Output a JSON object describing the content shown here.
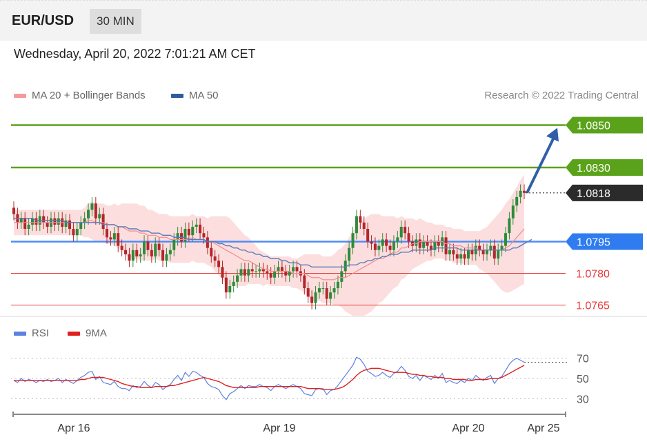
{
  "header": {
    "pair": "EUR/USD",
    "timeframe": "30 MIN"
  },
  "datetime": "Wednesday, April 20, 2022 7:01:21 AM CET",
  "legend": {
    "ma20": "MA 20 + Bollinger Bands",
    "ma50": "MA 50"
  },
  "credit": "Research © 2022 Trading Central",
  "rsi_legend": {
    "rsi": "RSI",
    "ma": "9MA"
  },
  "colors": {
    "resistance": "#5aa21a",
    "support": "#4d8cf5",
    "target_red": "#e53935",
    "last_price": "#2b2b2b",
    "bollinger": "#fbd0d0",
    "ma20": "#f08c8c",
    "ma50": "#5a7ab8",
    "up": "#2e8b3a",
    "down": "#b3262a",
    "arrow": "#2f5fa8",
    "rsi": "#5b82e0",
    "rsi_ma": "#e02020"
  },
  "chart_data": [
    {
      "type": "candlestick",
      "title": "",
      "x_labels": [
        "Apr 16",
        "Apr 19",
        "Apr 20",
        "Apr 25"
      ],
      "ylim": [
        1.076,
        1.0857
      ],
      "levels": [
        {
          "value": "1.0850",
          "kind": "resistance"
        },
        {
          "value": "1.0830",
          "kind": "resistance"
        },
        {
          "value": "1.0818",
          "kind": "last"
        },
        {
          "value": "1.0795",
          "kind": "pivot"
        },
        {
          "value": "1.0780",
          "kind": "support"
        },
        {
          "value": "1.0765",
          "kind": "support"
        }
      ],
      "close_series": [
        1.0808,
        1.0804,
        1.0806,
        1.0801,
        1.0803,
        1.0806,
        1.0803,
        1.0807,
        1.0804,
        1.0802,
        1.0806,
        1.0803,
        1.0806,
        1.0802,
        1.0805,
        1.0801,
        1.0798,
        1.0801,
        1.0804,
        1.0806,
        1.081,
        1.0813,
        1.0806,
        1.0808,
        1.0801,
        1.0797,
        1.0796,
        1.0799,
        1.0793,
        1.0791,
        1.0789,
        1.0786,
        1.0791,
        1.0788,
        1.0789,
        1.0795,
        1.0791,
        1.0788,
        1.0794,
        1.0791,
        1.0786,
        1.0789,
        1.0791,
        1.0796,
        1.0799,
        1.0795,
        1.0801,
        1.0798,
        1.0802,
        1.0803,
        1.0799,
        1.0797,
        1.0792,
        1.0788,
        1.0786,
        1.0783,
        1.0778,
        1.0771,
        1.0774,
        1.0776,
        1.0779,
        1.0782,
        1.0779,
        1.0782,
        1.0781,
        1.0781,
        1.0782,
        1.0781,
        1.078,
        1.0778,
        1.0781,
        1.0783,
        1.0781,
        1.0779,
        1.0781,
        1.0783,
        1.0781,
        1.0779,
        1.0773,
        1.0769,
        1.0766,
        1.0771,
        1.0773,
        1.0773,
        1.0768,
        1.0771,
        1.0773,
        1.0776,
        1.0781,
        1.0786,
        1.0792,
        1.0799,
        1.0807,
        1.0804,
        1.0801,
        1.0795,
        1.0794,
        1.0791,
        1.0793,
        1.0796,
        1.0793,
        1.0791,
        1.0795,
        1.0797,
        1.0802,
        1.0799,
        1.0795,
        1.0793,
        1.0796,
        1.0792,
        1.0795,
        1.0793,
        1.0791,
        1.0795,
        1.0793,
        1.0797,
        1.0789,
        1.0791,
        1.0789,
        1.0787,
        1.0789,
        1.0787,
        1.0791,
        1.0789,
        1.0793,
        1.0791,
        1.0789,
        1.0791,
        1.0793,
        1.0787,
        1.0791,
        1.0793,
        1.0799,
        1.0806,
        1.0812,
        1.0816,
        1.0819,
        1.0818
      ],
      "ma20": [
        1.0804,
        1.0804,
        1.0804,
        1.0804,
        1.0804,
        1.0804,
        1.0804,
        1.0804,
        1.0804,
        1.0804,
        1.0804,
        1.0804,
        1.0804,
        1.0804,
        1.0804,
        1.0804,
        1.0804,
        1.0804,
        1.0804,
        1.0804,
        1.0805,
        1.0805,
        1.0804,
        1.0804,
        1.0804,
        1.0803,
        1.0803,
        1.0803,
        1.0802,
        1.0802,
        1.0801,
        1.08,
        1.08,
        1.08,
        1.0799,
        1.0799,
        1.0798,
        1.0798,
        1.0798,
        1.0797,
        1.0797,
        1.0797,
        1.0796,
        1.0796,
        1.0796,
        1.0796,
        1.0796,
        1.0796,
        1.0797,
        1.0796,
        1.0796,
        1.0796,
        1.0795,
        1.0795,
        1.0794,
        1.0793,
        1.0792,
        1.0791,
        1.079,
        1.0789,
        1.0788,
        1.0787,
        1.0786,
        1.0786,
        1.0785,
        1.0784,
        1.0783,
        1.0782,
        1.0782,
        1.0781,
        1.0781,
        1.0781,
        1.0781,
        1.0781,
        1.0781,
        1.078,
        1.078,
        1.078,
        1.078,
        1.0779,
        1.0778,
        1.0778,
        1.0778,
        1.0777,
        1.0777,
        1.0777,
        1.0777,
        1.0778,
        1.0778,
        1.0778,
        1.0779,
        1.078,
        1.0781,
        1.0782,
        1.0783,
        1.0784,
        1.0785,
        1.0786,
        1.0787,
        1.0787,
        1.0788,
        1.0789,
        1.079,
        1.079,
        1.0792,
        1.0792,
        1.0793,
        1.0794,
        1.0794,
        1.0795,
        1.0795,
        1.0795,
        1.0795,
        1.0795,
        1.0795,
        1.0795,
        1.0794,
        1.0794,
        1.0793,
        1.0793,
        1.0793,
        1.0792,
        1.0792,
        1.0792,
        1.0792,
        1.0791,
        1.0791,
        1.0791,
        1.0791,
        1.0791,
        1.0791,
        1.0791,
        1.0792,
        1.0793,
        1.0795,
        1.0797,
        1.0799,
        1.0801
      ],
      "ma50": [
        1.0806,
        1.0806,
        1.0806,
        1.0806,
        1.0806,
        1.0806,
        1.0805,
        1.0805,
        1.0805,
        1.0805,
        1.0805,
        1.0805,
        1.0805,
        1.0805,
        1.0804,
        1.0804,
        1.0804,
        1.0804,
        1.0804,
        1.0804,
        1.0804,
        1.0804,
        1.0804,
        1.0804,
        1.0803,
        1.0803,
        1.0803,
        1.0803,
        1.0802,
        1.0802,
        1.0802,
        1.0801,
        1.0801,
        1.0801,
        1.08,
        1.08,
        1.08,
        1.0799,
        1.0799,
        1.0799,
        1.0798,
        1.0798,
        1.0798,
        1.0797,
        1.0797,
        1.0797,
        1.0797,
        1.0796,
        1.0796,
        1.0796,
        1.0796,
        1.0796,
        1.0795,
        1.0795,
        1.0795,
        1.0794,
        1.0794,
        1.0793,
        1.0793,
        1.0792,
        1.0792,
        1.0791,
        1.0791,
        1.079,
        1.079,
        1.0789,
        1.0789,
        1.0788,
        1.0788,
        1.0787,
        1.0787,
        1.0787,
        1.0786,
        1.0786,
        1.0785,
        1.0785,
        1.0785,
        1.0784,
        1.0784,
        1.0784,
        1.0783,
        1.0783,
        1.0783,
        1.0783,
        1.0783,
        1.0783,
        1.0783,
        1.0783,
        1.0783,
        1.0783,
        1.0784,
        1.0784,
        1.0784,
        1.0785,
        1.0785,
        1.0786,
        1.0786,
        1.0787,
        1.0787,
        1.0788,
        1.0788,
        1.0789,
        1.0789,
        1.0789,
        1.079,
        1.079,
        1.079,
        1.0791,
        1.0791,
        1.0791,
        1.0791,
        1.0791,
        1.0791,
        1.0792,
        1.0792,
        1.0792,
        1.0792,
        1.0792,
        1.0792,
        1.0792,
        1.0791,
        1.0791,
        1.0791,
        1.0791,
        1.0791,
        1.0791,
        1.0791,
        1.0791,
        1.0791,
        1.0791,
        1.0791,
        1.0791,
        1.0791,
        1.0791,
        1.0792,
        1.0792,
        1.0793,
        1.0794,
        1.0795,
        1.0796
      ],
      "bb_width": [
        0.0006,
        0.0006,
        0.0006,
        0.0006,
        0.0006,
        0.0006,
        0.0006,
        0.0006,
        0.0006,
        0.0006,
        0.0006,
        0.0006,
        0.0006,
        0.0006,
        0.0006,
        0.0006,
        0.0006,
        0.0006,
        0.0006,
        0.0007,
        0.0008,
        0.0009,
        0.0009,
        0.0009,
        0.0009,
        0.0009,
        0.0009,
        0.001,
        0.001,
        0.0011,
        0.0012,
        0.0013,
        0.0013,
        0.0013,
        0.0013,
        0.0013,
        0.0012,
        0.0012,
        0.0011,
        0.0011,
        0.0011,
        0.0011,
        0.0011,
        0.0011,
        0.0011,
        0.0011,
        0.0011,
        0.0011,
        0.0011,
        0.0011,
        0.0011,
        0.0011,
        0.0011,
        0.0012,
        0.0013,
        0.0014,
        0.0015,
        0.0016,
        0.0016,
        0.0015,
        0.0014,
        0.0013,
        0.0012,
        0.0011,
        0.001,
        0.0009,
        0.0008,
        0.0008,
        0.0007,
        0.0007,
        0.0007,
        0.0007,
        0.0007,
        0.0007,
        0.0007,
        0.0007,
        0.0007,
        0.0008,
        0.0009,
        0.001,
        0.0011,
        0.0011,
        0.0011,
        0.0011,
        0.0011,
        0.0011,
        0.0012,
        0.0013,
        0.0014,
        0.0016,
        0.0018,
        0.002,
        0.0021,
        0.0022,
        0.0023,
        0.0023,
        0.0023,
        0.0022,
        0.0021,
        0.002,
        0.0019,
        0.0018,
        0.0017,
        0.0016,
        0.0015,
        0.0014,
        0.0013,
        0.0012,
        0.0011,
        0.0011,
        0.001,
        0.0009,
        0.0009,
        0.0008,
        0.0008,
        0.0008,
        0.0008,
        0.0008,
        0.0008,
        0.0008,
        0.0008,
        0.0008,
        0.0008,
        0.0008,
        0.0008,
        0.0009,
        0.001,
        0.0011,
        0.0013,
        0.0015,
        0.0017,
        0.0019,
        0.0021,
        0.0022,
        0.0023,
        0.0024,
        0.0025,
        0.0026
      ]
    },
    {
      "type": "line",
      "title": "",
      "yticks": [
        "70",
        "50",
        "30"
      ],
      "ylim": [
        20,
        80
      ],
      "series": [
        {
          "name": "RSI",
          "values": [
            48,
            46,
            50,
            47,
            49,
            48,
            46,
            48,
            47,
            49,
            47,
            48,
            50,
            46,
            49,
            47,
            45,
            48,
            51,
            53,
            56,
            57,
            49,
            52,
            46,
            45,
            44,
            47,
            42,
            40,
            40,
            38,
            43,
            41,
            42,
            47,
            43,
            41,
            46,
            44,
            39,
            42,
            44,
            49,
            53,
            48,
            56,
            52,
            57,
            56,
            53,
            51,
            45,
            42,
            41,
            39,
            33,
            29,
            35,
            37,
            40,
            43,
            40,
            43,
            42,
            42,
            44,
            42,
            41,
            38,
            42,
            44,
            42,
            40,
            42,
            44,
            42,
            40,
            35,
            34,
            33,
            39,
            40,
            40,
            34,
            38,
            39,
            43,
            48,
            53,
            58,
            63,
            71,
            69,
            64,
            57,
            55,
            52,
            53,
            56,
            53,
            51,
            55,
            57,
            62,
            58,
            52,
            50,
            53,
            48,
            53,
            51,
            49,
            53,
            50,
            55,
            46,
            48,
            46,
            45,
            48,
            46,
            50,
            48,
            53,
            50,
            48,
            51,
            53,
            45,
            50,
            52,
            58,
            64,
            68,
            70,
            68,
            66
          ]
        },
        {
          "name": "9MA",
          "values": [
            48,
            48,
            48,
            48,
            48,
            48,
            48,
            48,
            48,
            48,
            48,
            48,
            48,
            48,
            48,
            48,
            48,
            48,
            49,
            49,
            50,
            51,
            51,
            51,
            51,
            50,
            49,
            48,
            47,
            45,
            44,
            43,
            42,
            42,
            41,
            41,
            41,
            41,
            42,
            42,
            42,
            42,
            43,
            43,
            44,
            45,
            46,
            47,
            48,
            49,
            50,
            51,
            50,
            49,
            48,
            47,
            45,
            43,
            42,
            41,
            41,
            41,
            41,
            41,
            41,
            41,
            42,
            42,
            42,
            42,
            42,
            42,
            42,
            42,
            42,
            42,
            42,
            42,
            41,
            40,
            40,
            40,
            40,
            39,
            39,
            39,
            39,
            40,
            41,
            43,
            46,
            49,
            53,
            56,
            58,
            59,
            60,
            60,
            60,
            59,
            58,
            57,
            56,
            56,
            56,
            56,
            55,
            54,
            54,
            53,
            53,
            52,
            52,
            51,
            51,
            51,
            50,
            50,
            49,
            49,
            49,
            49,
            48,
            48,
            49,
            49,
            49,
            49,
            50,
            50,
            50,
            51,
            53,
            55,
            57,
            59,
            61,
            63
          ]
        }
      ]
    }
  ]
}
